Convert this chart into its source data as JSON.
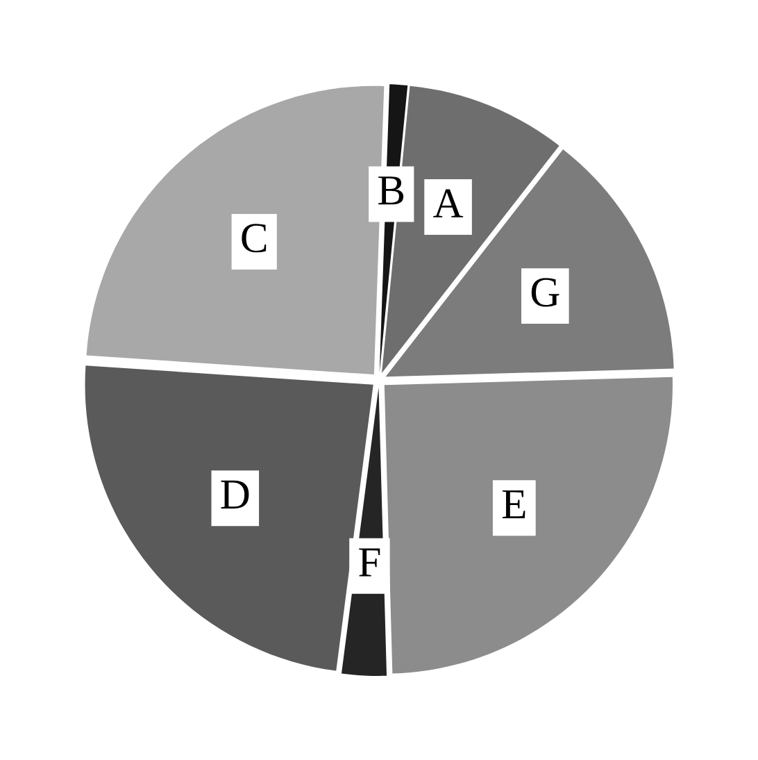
{
  "chart_data": {
    "type": "pie",
    "categories": [
      "B",
      "A",
      "G",
      "E",
      "F",
      "D",
      "C"
    ],
    "values": [
      1,
      9,
      14,
      25,
      2.5,
      24,
      24.5
    ],
    "colors": [
      "#151515",
      "#6e6e6e",
      "#7c7c7c",
      "#8c8c8c",
      "#252525",
      "#5a5a5a",
      "#a8a8a8"
    ]
  }
}
